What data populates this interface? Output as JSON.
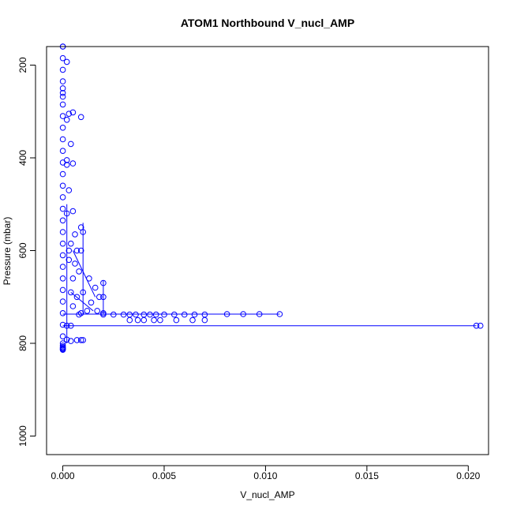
{
  "chart_data": {
    "type": "scatter",
    "title": "ATOM1 Northbound V_nucl_AMP",
    "xlabel": "V_nucl_AMP",
    "ylabel": "Pressure (mbar)",
    "xlim": [
      -0.0008,
      0.021
    ],
    "ylim": [
      1040,
      160
    ],
    "y_inverted": true,
    "grid": false,
    "legend": "none",
    "xticks": [
      0.0,
      0.005,
      0.01,
      0.015,
      0.02
    ],
    "xtick_labels": [
      "0.000",
      "0.005",
      "0.010",
      "0.015",
      "0.020"
    ],
    "yticks": [
      200,
      400,
      600,
      800,
      1000
    ],
    "ytick_labels": [
      "200",
      "400",
      "600",
      "800",
      "1000"
    ],
    "color": "#0000ff",
    "marker": "open-circle",
    "series": [
      {
        "x": [
          0.0,
          0.0,
          0.0002,
          0.0,
          0.0005,
          0.0009,
          0.0003,
          0.0002,
          0.0004,
          0.0002,
          0.0002,
          0.0005,
          0.0003,
          0.0002,
          0.0005,
          0.0006,
          0.0004,
          0.0003,
          0.0007,
          0.0009,
          0.0003,
          0.0006,
          0.0005,
          0.0008,
          0.0009,
          0.001,
          0.0004,
          0.0007,
          0.001,
          0.0013,
          0.0016,
          0.0018,
          0.002,
          0.0005,
          0.0009,
          0.0014,
          0.002,
          0.002,
          0.0017,
          0.0012,
          0.0008,
          0.002,
          0.0025,
          0.003,
          0.0033,
          0.0036,
          0.004,
          0.0043,
          0.0046,
          0.005,
          0.0055,
          0.006,
          0.0065,
          0.007,
          0.0081,
          0.0089,
          0.0107,
          0.0097,
          0.007,
          0.0064,
          0.0056,
          0.0048,
          0.0045,
          0.004,
          0.0037,
          0.0033,
          0.0004,
          0.0002,
          0.0204,
          0.0206,
          0.0002,
          0.0004,
          0.0007,
          0.0009,
          0.001,
          0.0
        ],
        "y": [
          160,
          250,
          193,
          268,
          302,
          312,
          305,
          318,
          370,
          405,
          415,
          412,
          470,
          520,
          515,
          565,
          585,
          600,
          600,
          550,
          620,
          628,
          660,
          645,
          600,
          560,
          690,
          700,
          690,
          660,
          680,
          700,
          670,
          720,
          735,
          712,
          700,
          735,
          730,
          730,
          738,
          738,
          738,
          738,
          738,
          738,
          738,
          738,
          738,
          738,
          738,
          738,
          738,
          738,
          737,
          737,
          737,
          737,
          750,
          750,
          750,
          750,
          750,
          750,
          750,
          750,
          762,
          762,
          762,
          762,
          792,
          795,
          793,
          793,
          793,
          812
        ]
      },
      {
        "x": [
          0.0,
          0.0,
          0.0,
          0.0,
          0.0,
          0.0,
          0.0,
          0.0,
          0.0,
          0.0,
          0.0,
          0.0,
          0.0,
          0.0,
          0.0,
          0.0,
          0.0,
          0.0,
          0.0,
          0.0,
          0.0,
          0.0,
          0.0,
          0.0,
          0.0,
          0.0,
          0.0,
          0.0,
          0.0,
          0.0,
          0.0,
          0.0
        ],
        "y": [
          160,
          185,
          210,
          235,
          260,
          285,
          310,
          335,
          360,
          385,
          410,
          435,
          460,
          485,
          510,
          535,
          560,
          585,
          610,
          635,
          660,
          685,
          710,
          735,
          760,
          785,
          800,
          805,
          808,
          810,
          812,
          814
        ]
      }
    ],
    "line_segments": [
      {
        "x": [
          0.0,
          0.0204
        ],
        "y": [
          762,
          762
        ]
      },
      {
        "x": [
          0.0,
          0.0107
        ],
        "y": [
          737,
          737
        ]
      },
      {
        "x": [
          0.001,
          0.001
        ],
        "y": [
          540,
          738
        ]
      },
      {
        "x": [
          0.002,
          0.002
        ],
        "y": [
          665,
          738
        ]
      },
      {
        "x": [
          0.0002,
          0.0002
        ],
        "y": [
          500,
          800
        ]
      },
      {
        "x": [
          0.0004,
          0.0015
        ],
        "y": [
          690,
          730
        ]
      },
      {
        "x": [
          0.0005,
          0.0016
        ],
        "y": [
          600,
          700
        ]
      }
    ]
  }
}
